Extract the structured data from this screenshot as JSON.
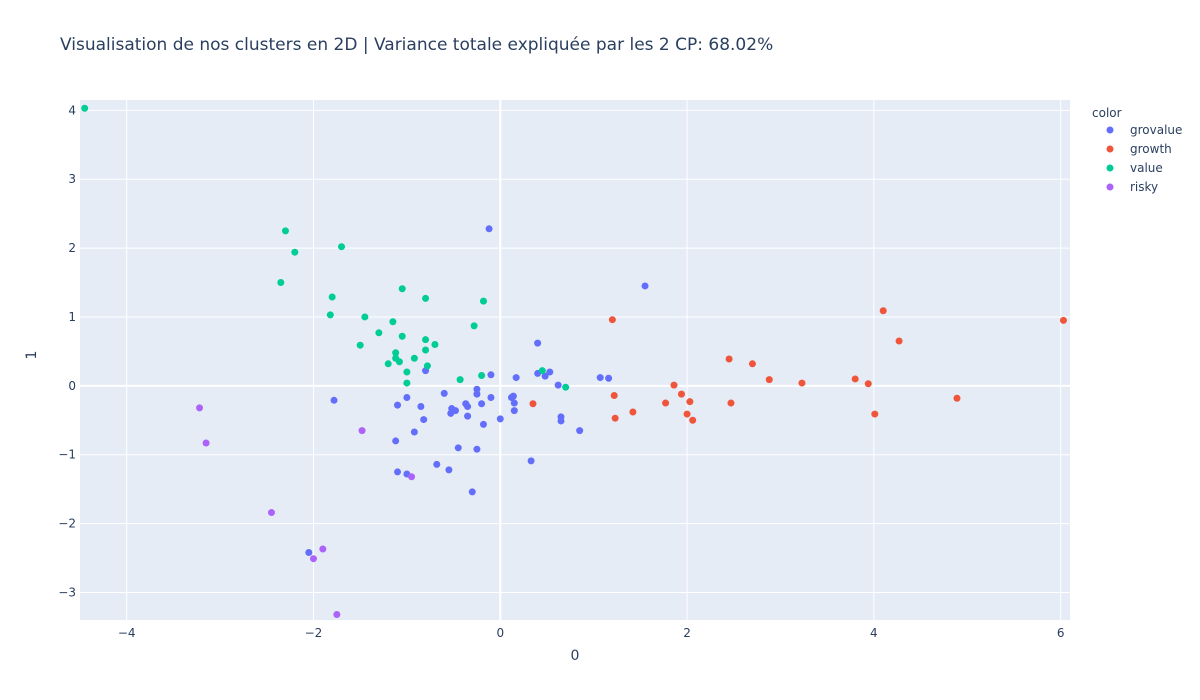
{
  "chart_data": {
    "type": "scatter",
    "title": "Visualisation de nos clusters en 2D | Variance totale expliquée par les 2 CP: 68.02%",
    "xlabel": "0",
    "ylabel": "1",
    "xlim": [
      -4.5,
      6.1
    ],
    "ylim": [
      -3.4,
      4.15
    ],
    "xticks": [
      -4,
      -2,
      0,
      2,
      4,
      6
    ],
    "yticks": [
      -3,
      -2,
      -1,
      0,
      1,
      2,
      3,
      4
    ],
    "grid": true,
    "legend_title": "color",
    "legend_position": "top-right",
    "series": [
      {
        "name": "grovalue",
        "color": "#636efa",
        "points": [
          [
            -0.12,
            2.28
          ],
          [
            1.55,
            1.45
          ],
          [
            0.4,
            0.62
          ],
          [
            -0.8,
            0.22
          ],
          [
            -0.1,
            0.16
          ],
          [
            0.17,
            0.12
          ],
          [
            0.4,
            0.18
          ],
          [
            0.48,
            0.14
          ],
          [
            0.53,
            0.2
          ],
          [
            0.62,
            0.01
          ],
          [
            1.07,
            0.12
          ],
          [
            1.16,
            0.11
          ],
          [
            -1.78,
            -0.21
          ],
          [
            -0.6,
            -0.11
          ],
          [
            -0.25,
            -0.05
          ],
          [
            -0.25,
            -0.12
          ],
          [
            -0.1,
            -0.17
          ],
          [
            0.12,
            -0.17
          ],
          [
            0.14,
            -0.15
          ],
          [
            0.15,
            -0.25
          ],
          [
            -1.0,
            -0.17
          ],
          [
            -1.1,
            -0.28
          ],
          [
            -0.85,
            -0.3
          ],
          [
            -0.52,
            -0.33
          ],
          [
            -0.48,
            -0.36
          ],
          [
            -0.37,
            -0.26
          ],
          [
            -0.35,
            -0.3
          ],
          [
            -0.2,
            -0.26
          ],
          [
            -0.53,
            -0.4
          ],
          [
            -0.35,
            -0.44
          ],
          [
            0.15,
            -0.36
          ],
          [
            0.0,
            -0.48
          ],
          [
            -0.82,
            -0.49
          ],
          [
            -0.18,
            -0.56
          ],
          [
            0.65,
            -0.45
          ],
          [
            0.65,
            -0.51
          ],
          [
            0.85,
            -0.65
          ],
          [
            -0.92,
            -0.67
          ],
          [
            -1.12,
            -0.8
          ],
          [
            -0.45,
            -0.9
          ],
          [
            -0.25,
            -0.92
          ],
          [
            0.33,
            -1.09
          ],
          [
            -0.68,
            -1.14
          ],
          [
            -0.55,
            -1.22
          ],
          [
            -1.1,
            -1.25
          ],
          [
            -1.0,
            -1.28
          ],
          [
            -0.3,
            -1.54
          ],
          [
            -2.05,
            -2.42
          ]
        ]
      },
      {
        "name": "growth",
        "color": "#ef553b",
        "points": [
          [
            1.2,
            0.96
          ],
          [
            6.03,
            0.95
          ],
          [
            4.1,
            1.09
          ],
          [
            4.27,
            0.65
          ],
          [
            2.45,
            0.39
          ],
          [
            2.7,
            0.32
          ],
          [
            2.88,
            0.09
          ],
          [
            3.23,
            0.04
          ],
          [
            3.8,
            0.1
          ],
          [
            3.94,
            0.03
          ],
          [
            1.86,
            0.01
          ],
          [
            1.94,
            -0.12
          ],
          [
            1.22,
            -0.14
          ],
          [
            2.03,
            -0.23
          ],
          [
            1.77,
            -0.25
          ],
          [
            2.47,
            -0.25
          ],
          [
            0.35,
            -0.26
          ],
          [
            1.42,
            -0.38
          ],
          [
            2.0,
            -0.41
          ],
          [
            4.01,
            -0.41
          ],
          [
            1.23,
            -0.47
          ],
          [
            2.06,
            -0.5
          ],
          [
            4.89,
            -0.18
          ]
        ]
      },
      {
        "name": "value",
        "color": "#00cc96",
        "points": [
          [
            -4.45,
            4.03
          ],
          [
            -2.3,
            2.25
          ],
          [
            -2.2,
            1.94
          ],
          [
            -1.7,
            2.02
          ],
          [
            -2.35,
            1.5
          ],
          [
            -1.8,
            1.29
          ],
          [
            -1.05,
            1.41
          ],
          [
            -0.8,
            1.27
          ],
          [
            -0.18,
            1.23
          ],
          [
            -1.82,
            1.03
          ],
          [
            -1.45,
            1.0
          ],
          [
            -1.15,
            0.93
          ],
          [
            -0.28,
            0.87
          ],
          [
            -1.3,
            0.77
          ],
          [
            -1.05,
            0.72
          ],
          [
            -0.8,
            0.67
          ],
          [
            -0.7,
            0.6
          ],
          [
            -1.5,
            0.59
          ],
          [
            -0.8,
            0.52
          ],
          [
            -1.12,
            0.48
          ],
          [
            -1.12,
            0.4
          ],
          [
            -0.92,
            0.4
          ],
          [
            -1.08,
            0.35
          ],
          [
            -1.2,
            0.32
          ],
          [
            -0.78,
            0.29
          ],
          [
            -1.0,
            0.2
          ],
          [
            0.45,
            0.22
          ],
          [
            -0.2,
            0.15
          ],
          [
            -0.43,
            0.09
          ],
          [
            -1.0,
            0.04
          ],
          [
            0.7,
            -0.02
          ]
        ]
      },
      {
        "name": "risky",
        "color": "#ab63fa",
        "points": [
          [
            -3.22,
            -0.32
          ],
          [
            -3.15,
            -0.83
          ],
          [
            -1.48,
            -0.65
          ],
          [
            -0.95,
            -1.32
          ],
          [
            -2.45,
            -1.84
          ],
          [
            -1.9,
            -2.37
          ],
          [
            -2.0,
            -2.51
          ],
          [
            -1.75,
            -3.32
          ]
        ]
      }
    ]
  }
}
